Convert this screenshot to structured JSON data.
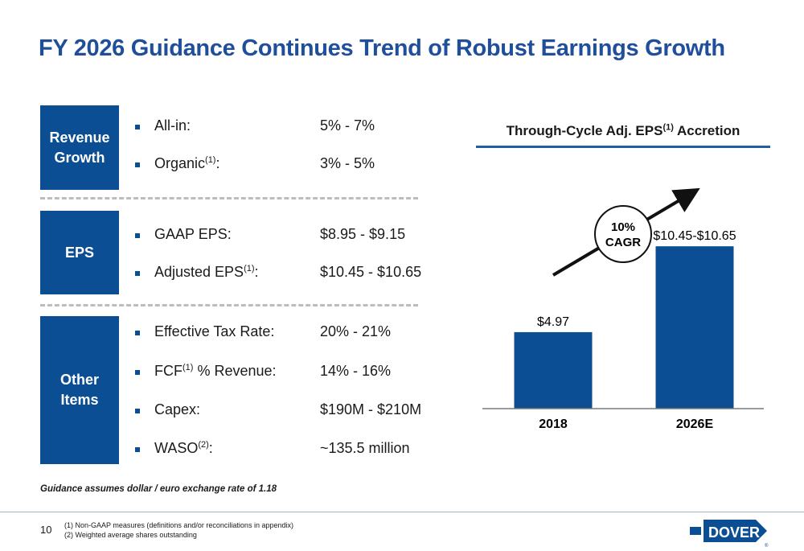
{
  "title": "FY 2026 Guidance Continues Trend of Robust Earnings Growth",
  "sections": [
    {
      "label": [
        "Revenue",
        "Growth"
      ],
      "items": [
        {
          "label": "All-in:",
          "sup": "",
          "suffix": "",
          "value": "5% - 7%"
        },
        {
          "label": "Organic",
          "sup": "(1)",
          "suffix": ":",
          "value": "3% - 5%"
        }
      ]
    },
    {
      "label": [
        "EPS"
      ],
      "items": [
        {
          "label": "GAAP EPS:",
          "sup": "",
          "suffix": "",
          "value": "$8.95 - $9.15"
        },
        {
          "label": "Adjusted EPS",
          "sup": "(1)",
          "suffix": ":",
          "value": "$10.45 - $10.65"
        }
      ]
    },
    {
      "label": [
        "Other",
        "Items"
      ],
      "items": [
        {
          "label": "Effective Tax Rate:",
          "sup": "",
          "suffix": "",
          "value": "20% - 21%"
        },
        {
          "label": "FCF",
          "sup": "(1)",
          "suffix": " % Revenue:",
          "value": "14% - 16%"
        },
        {
          "label": "Capex:",
          "sup": "",
          "suffix": "",
          "value": "$190M - $210M"
        },
        {
          "label": "WASO",
          "sup": "(2)",
          "suffix": ":",
          "value": "~135.5 million"
        }
      ]
    }
  ],
  "assumption": "Guidance assumes dollar / euro exchange rate of 1.18",
  "page_number": "10",
  "footnotes": [
    "(1)    Non-GAAP measures (definitions and/or reconciliations in appendix)",
    "(2)    Weighted average shares outstanding"
  ],
  "logo_text": "DOVER",
  "colors": {
    "primary": "#0b4e93",
    "title": "#1f4e9a",
    "rule": "#1f5fa8"
  },
  "chart_data": {
    "type": "bar",
    "title": "Through-Cycle Adj. EPS(1) Accretion",
    "title_main": "Through-Cycle Adj. EPS",
    "title_sup": "(1)",
    "title_suffix": " Accretion",
    "categories": [
      "2018",
      "2026E"
    ],
    "values": [
      4.97,
      10.55
    ],
    "data_labels": [
      "$4.97",
      "$10.45-$10.65"
    ],
    "annotation": [
      "10%",
      "CAGR"
    ],
    "ylim": [
      0,
      11.5
    ],
    "color": "#0b4e93",
    "grid": false
  }
}
